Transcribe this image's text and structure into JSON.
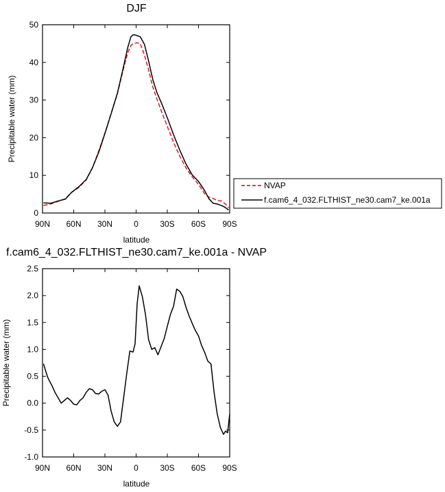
{
  "chart_data": [
    {
      "type": "line",
      "title": "DJF",
      "xlabel": "latitude",
      "ylabel": "Precipitable water (mm)",
      "xlim": [
        -90,
        90
      ],
      "ylim": [
        0,
        50
      ],
      "x_ticks": [
        -90,
        -60,
        -30,
        0,
        30,
        60,
        90
      ],
      "x_tick_labels": [
        "90N",
        "60N",
        "30N",
        "0",
        "30S",
        "60S",
        "90S"
      ],
      "y_ticks": [
        0,
        10,
        20,
        30,
        40,
        50
      ],
      "y_tick_labels": [
        "0",
        "10",
        "20",
        "30",
        "40",
        "50"
      ],
      "grid": false,
      "legend_position": "right",
      "series": [
        {
          "name": "NVAP",
          "color": "#e0202a",
          "dash": "dashed",
          "x": [
            -89,
            -82,
            -75,
            -68,
            -62,
            -55,
            -48,
            -42,
            -36,
            -30,
            -24,
            -18,
            -12,
            -8,
            -5,
            -3,
            -1,
            1,
            4,
            8,
            12,
            16,
            20,
            25,
            30,
            36,
            42,
            48,
            54,
            60,
            66,
            70,
            74,
            78,
            82,
            85,
            87,
            89
          ],
          "y": [
            2.0,
            2.4,
            3.1,
            3.8,
            5.5,
            6.8,
            8.8,
            12.0,
            16.4,
            21.2,
            26.4,
            31.7,
            38.5,
            42.6,
            44.5,
            45.0,
            45.1,
            45.2,
            45.0,
            42.0,
            38.0,
            33.5,
            30.3,
            26.5,
            23.0,
            18.8,
            15.1,
            12.0,
            9.6,
            7.6,
            5.1,
            4.2,
            3.9,
            3.3,
            3.2,
            2.6,
            2.1,
            1.4
          ]
        },
        {
          "name": "f.cam6_4_032.FLTHIST_ne30.cam7_ke.001a",
          "color": "#000000",
          "dash": "solid",
          "x": [
            -89,
            -82,
            -75,
            -68,
            -62,
            -55,
            -48,
            -42,
            -36,
            -30,
            -24,
            -18,
            -12,
            -8,
            -5,
            -3,
            -1,
            1,
            4,
            8,
            12,
            16,
            20,
            25,
            30,
            36,
            42,
            48,
            54,
            60,
            66,
            70,
            74,
            78,
            82,
            85,
            87,
            89
          ],
          "y": [
            2.7,
            2.6,
            3.2,
            3.7,
            5.5,
            7.0,
            8.9,
            12.0,
            16.1,
            21.1,
            26.4,
            31.8,
            39.0,
            44.0,
            46.8,
            47.3,
            47.3,
            47.1,
            46.8,
            44.8,
            40.4,
            35.5,
            32.0,
            28.8,
            25.3,
            20.8,
            16.7,
            13.0,
            10.1,
            8.4,
            5.9,
            3.8,
            2.6,
            2.4,
            2.0,
            1.6,
            1.2,
            0.8
          ]
        }
      ]
    },
    {
      "type": "line",
      "title": "f.cam6_4_032.FLTHIST_ne30.cam7_ke.001a - NVAP",
      "xlabel": "latitude",
      "ylabel": "Precipitable water (mm)",
      "xlim": [
        -90,
        90
      ],
      "ylim": [
        -1.0,
        2.5
      ],
      "x_ticks": [
        -90,
        -60,
        -30,
        0,
        30,
        60,
        90
      ],
      "x_tick_labels": [
        "90N",
        "60N",
        "30N",
        "0",
        "30S",
        "60S",
        "90S"
      ],
      "y_ticks": [
        -1.0,
        -0.5,
        0.0,
        0.5,
        1.0,
        1.5,
        2.0,
        2.5
      ],
      "y_tick_labels": [
        "-1.0",
        "-0.5",
        "0.0",
        "0.5",
        "1.0",
        "1.5",
        "2.0",
        "2.5"
      ],
      "grid": false,
      "series": [
        {
          "color": "#000000",
          "dash": "solid",
          "x": [
            -89,
            -87,
            -85,
            -83,
            -81,
            -78,
            -75,
            -72,
            -69,
            -66,
            -63,
            -60,
            -57,
            -54,
            -51,
            -48,
            -45,
            -42,
            -39,
            -36,
            -33,
            -30,
            -27,
            -24,
            -21,
            -18,
            -15,
            -12,
            -9,
            -6,
            -3,
            -1,
            1,
            3,
            6,
            9,
            12,
            15,
            18,
            21,
            24,
            27,
            30,
            33,
            36,
            39,
            42,
            45,
            48,
            51,
            54,
            57,
            60,
            63,
            66,
            69,
            72,
            75,
            78,
            81,
            84,
            86,
            88,
            90
          ],
          "y": [
            0.73,
            0.6,
            0.48,
            0.4,
            0.33,
            0.2,
            0.1,
            0.0,
            0.05,
            0.1,
            0.05,
            -0.02,
            -0.03,
            0.05,
            0.1,
            0.2,
            0.27,
            0.25,
            0.18,
            0.17,
            0.22,
            0.25,
            0.15,
            -0.15,
            -0.35,
            -0.43,
            -0.35,
            0.1,
            0.55,
            0.97,
            0.95,
            1.1,
            1.85,
            2.18,
            1.98,
            1.65,
            1.18,
            1.0,
            1.03,
            0.9,
            1.05,
            1.2,
            1.43,
            1.65,
            1.8,
            2.12,
            2.08,
            1.98,
            1.78,
            1.62,
            1.48,
            1.35,
            1.25,
            1.07,
            0.94,
            0.78,
            0.73,
            0.2,
            -0.2,
            -0.45,
            -0.58,
            -0.52,
            -0.55,
            -0.2
          ]
        }
      ]
    }
  ]
}
